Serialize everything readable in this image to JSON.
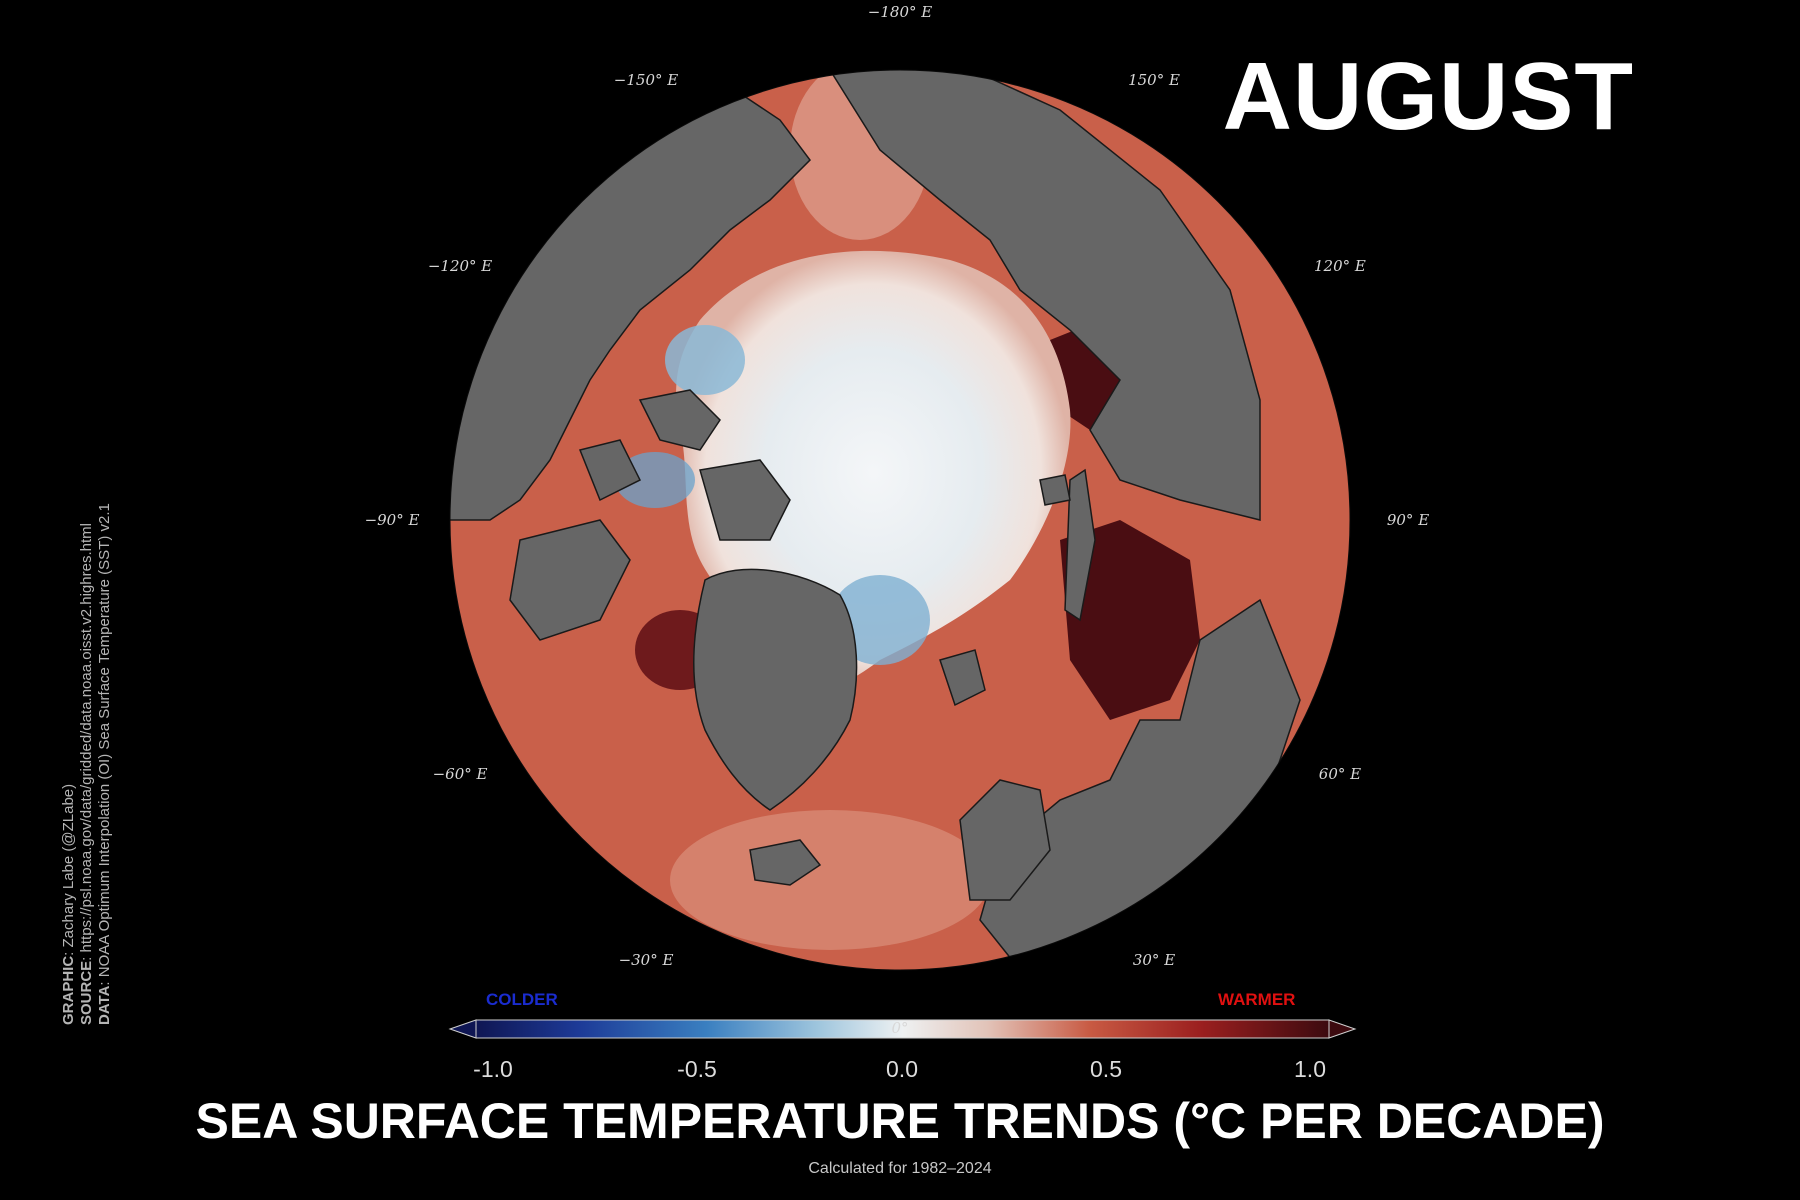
{
  "month": "AUGUST",
  "title": "SEA SURFACE TEMPERATURE TRENDS (°C PER DECADE)",
  "subtitle": "Calculated for 1982–2024",
  "colorbar": {
    "colder_label": "COLDER",
    "warmer_label": "WARMER",
    "ticks": [
      "-1.0",
      "-0.5",
      "0.0",
      "0.5",
      "1.0"
    ],
    "range": [
      -1.0,
      1.0
    ],
    "colors": [
      "#0f1653",
      "#1d3a97",
      "#3a7fc0",
      "#9ec5dd",
      "#e9eef1",
      "#f2ece8",
      "#d9a898",
      "#c85a43",
      "#9b1f1f",
      "#3c0a0f"
    ]
  },
  "longitude_labels": [
    {
      "lon": -180,
      "text": "−180° E"
    },
    {
      "lon": -150,
      "text": "−150° E"
    },
    {
      "lon": 150,
      "text": "150° E"
    },
    {
      "lon": -120,
      "text": "−120° E"
    },
    {
      "lon": 120,
      "text": "120° E"
    },
    {
      "lon": -90,
      "text": "−90° E"
    },
    {
      "lon": 90,
      "text": "90° E"
    },
    {
      "lon": -60,
      "text": "−60° E"
    },
    {
      "lon": 60,
      "text": "60° E"
    },
    {
      "lon": -30,
      "text": "−30° E"
    },
    {
      "lon": 30,
      "text": "30° E"
    },
    {
      "lon": 0,
      "text": "0°"
    }
  ],
  "credits": {
    "graphic_label": "GRAPHIC",
    "graphic": ": Zachary Labe (@ZLabe)",
    "source_label": "SOURCE",
    "source": ": https://psl.noaa.gov/data/gridded/data.noaa.oisst.v2.highres.html",
    "data_label": "DATA",
    "data": ": NOAA Optimum Interpolation (OI) Sea Surface Temperature (SST) v2.1"
  },
  "map_colors": {
    "land": "#666666",
    "ocean_warm": "#c8553e",
    "ice_center": "#e9eef1",
    "cold_patch": "#7fb0d2",
    "very_warm": "#4a0d12"
  }
}
